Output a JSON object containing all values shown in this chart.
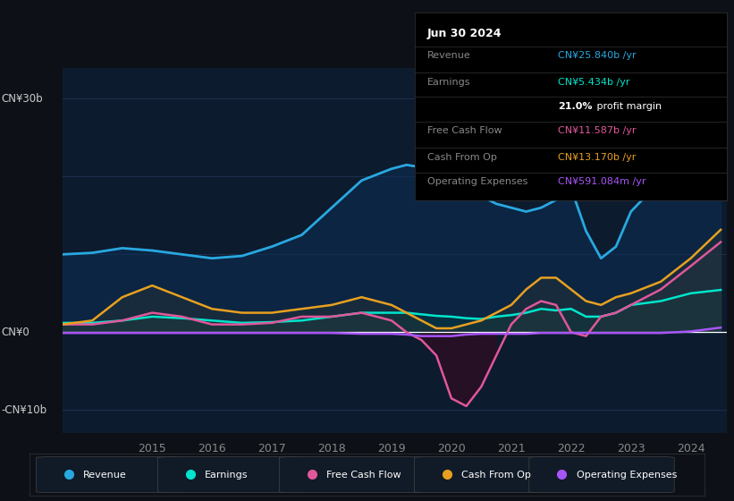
{
  "bg_color": "#0d1117",
  "plot_bg_color": "#0d1b2e",
  "ylabel_top": "CN¥30b",
  "ylabel_zero": "CN¥0",
  "ylabel_bottom": "-CN¥10b",
  "ylim": [
    -13,
    34
  ],
  "grid_y": [
    30,
    20,
    10,
    0,
    -10
  ],
  "xticks": [
    2015,
    2016,
    2017,
    2018,
    2019,
    2020,
    2021,
    2022,
    2023,
    2024
  ],
  "legend": [
    {
      "label": "Revenue",
      "color": "#29a8e0"
    },
    {
      "label": "Earnings",
      "color": "#00e5cc"
    },
    {
      "label": "Free Cash Flow",
      "color": "#e0579a"
    },
    {
      "label": "Cash From Op",
      "color": "#e8a020"
    },
    {
      "label": "Operating Expenses",
      "color": "#a855f7"
    }
  ],
  "x": [
    2013.5,
    2014.0,
    2014.5,
    2015.0,
    2015.5,
    2016.0,
    2016.5,
    2017.0,
    2017.5,
    2018.0,
    2018.5,
    2019.0,
    2019.25,
    2019.5,
    2019.75,
    2020.0,
    2020.25,
    2020.5,
    2020.75,
    2021.0,
    2021.25,
    2021.5,
    2021.75,
    2022.0,
    2022.25,
    2022.5,
    2022.75,
    2023.0,
    2023.5,
    2024.0,
    2024.5
  ],
  "revenue": [
    10.0,
    10.2,
    10.8,
    10.5,
    10.0,
    9.5,
    9.8,
    11.0,
    12.5,
    16.0,
    19.5,
    21.0,
    21.5,
    21.2,
    20.5,
    20.0,
    19.0,
    17.5,
    16.5,
    16.0,
    15.5,
    16.0,
    17.0,
    18.5,
    13.0,
    9.5,
    11.0,
    15.5,
    19.5,
    23.5,
    25.84
  ],
  "earnings": [
    1.2,
    1.2,
    1.5,
    2.0,
    1.8,
    1.5,
    1.2,
    1.3,
    1.5,
    2.0,
    2.5,
    2.5,
    2.5,
    2.3,
    2.1,
    2.0,
    1.8,
    1.7,
    2.0,
    2.2,
    2.5,
    3.0,
    2.8,
    3.0,
    2.0,
    2.0,
    2.5,
    3.5,
    4.0,
    5.0,
    5.434
  ],
  "free_cash_flow": [
    1.0,
    1.0,
    1.5,
    2.5,
    2.0,
    1.0,
    1.0,
    1.2,
    2.0,
    2.0,
    2.5,
    1.5,
    0.0,
    -1.0,
    -3.0,
    -8.5,
    -9.5,
    -7.0,
    -3.0,
    1.0,
    3.0,
    4.0,
    3.5,
    0.0,
    -0.5,
    2.0,
    2.5,
    3.5,
    5.5,
    8.5,
    11.587
  ],
  "cash_from_op": [
    1.0,
    1.5,
    4.5,
    6.0,
    4.5,
    3.0,
    2.5,
    2.5,
    3.0,
    3.5,
    4.5,
    3.5,
    2.5,
    1.5,
    0.5,
    0.5,
    1.0,
    1.5,
    2.5,
    3.5,
    5.5,
    7.0,
    7.0,
    5.5,
    4.0,
    3.5,
    4.5,
    5.0,
    6.5,
    9.5,
    13.17
  ],
  "operating_expenses": [
    -0.1,
    -0.1,
    -0.1,
    -0.1,
    -0.1,
    -0.1,
    -0.1,
    -0.1,
    -0.1,
    -0.1,
    -0.2,
    -0.2,
    -0.3,
    -0.5,
    -0.5,
    -0.5,
    -0.3,
    -0.2,
    -0.2,
    -0.2,
    -0.2,
    -0.1,
    -0.1,
    -0.1,
    -0.1,
    -0.1,
    -0.1,
    -0.1,
    -0.1,
    0.1,
    0.591
  ],
  "info_title": "Jun 30 2024",
  "info_rows": [
    {
      "label": "Revenue",
      "value": "CN¥25.840b /yr",
      "color": "#29a8e0"
    },
    {
      "label": "Earnings",
      "value": "CN¥5.434b /yr",
      "color": "#00e5cc"
    },
    {
      "label": "",
      "value": "21.0% profit margin",
      "color": "white",
      "bold_prefix": "21.0%"
    },
    {
      "label": "Free Cash Flow",
      "value": "CN¥11.587b /yr",
      "color": "#e0579a"
    },
    {
      "label": "Cash From Op",
      "value": "CN¥13.170b /yr",
      "color": "#e8a020"
    },
    {
      "label": "Operating Expenses",
      "value": "CN¥591.084m /yr",
      "color": "#a855f7"
    }
  ]
}
